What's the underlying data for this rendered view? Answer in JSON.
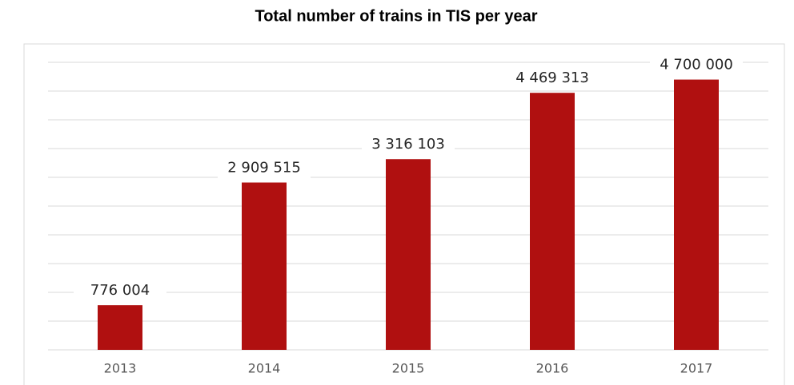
{
  "chart_data": {
    "type": "bar",
    "title": "Total number of trains in TIS per year",
    "categories": [
      "2013",
      "2014",
      "2015",
      "2016",
      "2017"
    ],
    "values": [
      776004,
      2909515,
      3316103,
      4469313,
      4700000
    ],
    "value_labels": [
      "776 004",
      "2 909 515",
      "3 316 103",
      "4 469 313",
      "4 700 000"
    ],
    "color": "#b01010",
    "ylim": [
      0,
      5000000
    ],
    "yticks": [
      0,
      500000,
      1000000,
      1500000,
      2000000,
      2500000,
      3000000,
      3500000,
      4000000,
      4500000,
      5000000
    ],
    "grid": true
  }
}
